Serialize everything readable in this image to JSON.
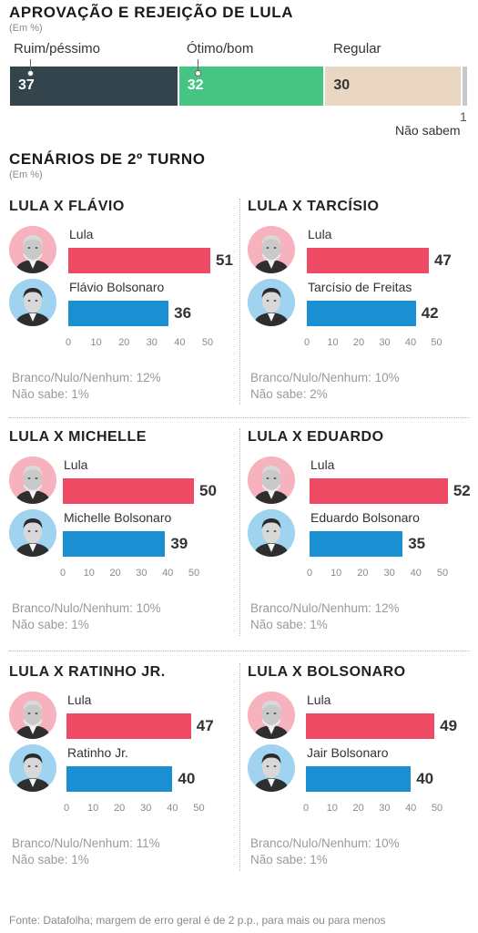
{
  "chart_data": [
    {
      "type": "bar",
      "title": "APROVAÇÃO E REJEIÇÃO DE LULA",
      "subtitle": "(Em %)",
      "stacked": true,
      "categories": [
        "Ruim/péssimo",
        "Ótimo/bom",
        "Regular",
        "Não sabem"
      ],
      "values": [
        37,
        32,
        30,
        1
      ],
      "colors": [
        "#34444d",
        "#45c482",
        "#ead7c3",
        "#c8c8c8"
      ]
    },
    {
      "type": "section",
      "title": "CENÁRIOS DE 2º TURNO",
      "subtitle": "(Em %)"
    },
    {
      "type": "bar",
      "title": "LULA X FLÁVIO",
      "categories": [
        "Lula",
        "Flávio Bolsonaro"
      ],
      "values": [
        51,
        36
      ],
      "xlim": [
        0,
        50
      ],
      "ticks": [
        0,
        10,
        20,
        30,
        40,
        50
      ],
      "notes": [
        "Branco/Nulo/Nenhum: 12%",
        "Não sabe: 1%"
      ]
    },
    {
      "type": "bar",
      "title": "LULA X TARCÍSIO",
      "categories": [
        "Lula",
        "Tarcísio de Freitas"
      ],
      "values": [
        47,
        42
      ],
      "xlim": [
        0,
        50
      ],
      "ticks": [
        0,
        10,
        20,
        30,
        40,
        50
      ],
      "notes": [
        "Branco/Nulo/Nenhum:  10%",
        "Não sabe: 2%"
      ]
    },
    {
      "type": "bar",
      "title": "LULA X MICHELLE",
      "categories": [
        "Lula",
        "Michelle Bolsonaro"
      ],
      "values": [
        50,
        39
      ],
      "xlim": [
        0,
        50
      ],
      "ticks": [
        0,
        10,
        20,
        30,
        40,
        50
      ],
      "notes": [
        "Branco/Nulo/Nenhum: 10%",
        "Não sabe: 1%"
      ]
    },
    {
      "type": "bar",
      "title": "LULA X EDUARDO",
      "categories": [
        "Lula",
        "Eduardo Bolsonaro"
      ],
      "values": [
        52,
        35
      ],
      "xlim": [
        0,
        50
      ],
      "ticks": [
        0,
        10,
        20,
        30,
        40,
        50
      ],
      "notes": [
        "Branco/Nulo/Nenhum: 12%",
        "Não sabe: 1%"
      ]
    },
    {
      "type": "bar",
      "title": "LULA X RATINHO JR.",
      "categories": [
        "Lula",
        "Ratinho Jr."
      ],
      "values": [
        47,
        40
      ],
      "xlim": [
        0,
        50
      ],
      "ticks": [
        0,
        10,
        20,
        30,
        40,
        50
      ],
      "notes": [
        "Branco/Nulo/Nenhum: 11%",
        "Não sabe: 1%"
      ]
    },
    {
      "type": "bar",
      "title": "LULA X BOLSONARO",
      "categories": [
        "Lula",
        "Jair Bolsonaro"
      ],
      "values": [
        49,
        40
      ],
      "xlim": [
        0,
        50
      ],
      "ticks": [
        0,
        10,
        20,
        30,
        40,
        50
      ],
      "notes": [
        "Branco/Nulo/Nenhum: 10%",
        "Não sabe: 1%"
      ]
    }
  ],
  "colors": {
    "lula": "#ef4a63",
    "opponent": "#1a8fd2",
    "lula_avatar_bg": "#f7b3bd",
    "opponent_avatar_bg": "#9fd3f0"
  },
  "source": "Fonte: Datafolha; margem de erro geral é de 2 p.p., para mais ou para menos"
}
